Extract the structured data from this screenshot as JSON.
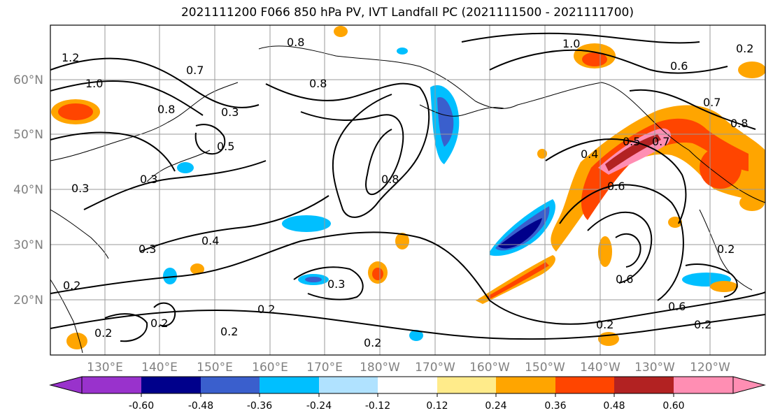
{
  "title": "2021111200 F066 850 hPa PV, IVT Landfall PC (2021111500 - 2021111700)",
  "lat_labels": [
    "60°N",
    "50°N",
    "40°N",
    "30°N",
    "20°N"
  ],
  "lon_labels": [
    "130°E",
    "140°E",
    "150°E",
    "160°E",
    "170°E",
    "180°W",
    "170°W",
    "160°W",
    "150°W",
    "140°W",
    "130°W",
    "120°W"
  ],
  "colorbar": {
    "colors": [
      "#9932cc",
      "#00008b",
      "#3a5fcd",
      "#00bfff",
      "#b0e2ff",
      "#ffffff",
      "#ffeb8a",
      "#ffa500",
      "#ff4500",
      "#b22222",
      "#ff8eb3"
    ],
    "tick_labels": [
      "-0.60",
      "-0.48",
      "-0.36",
      "-0.24",
      "-0.12",
      "0.12",
      "0.24",
      "0.36",
      "0.48",
      "0.60"
    ]
  },
  "contour_labels": [
    "0.8",
    "1.0",
    "1.2",
    "1.0",
    "0.7",
    "0.3",
    "0.5",
    "0.3",
    "0.8",
    "0.8",
    "0.3",
    "0.4",
    "0.3",
    "0.2",
    "0.2",
    "0.2",
    "0.2",
    "0.2",
    "0.3",
    "0.2",
    "0.8",
    "0.4",
    "0.5",
    "0.7",
    "0.6",
    "0.6",
    "0.7",
    "0.8",
    "0.6",
    "0.2",
    "0.6",
    "0.2",
    "0.2",
    "0.2"
  ]
}
